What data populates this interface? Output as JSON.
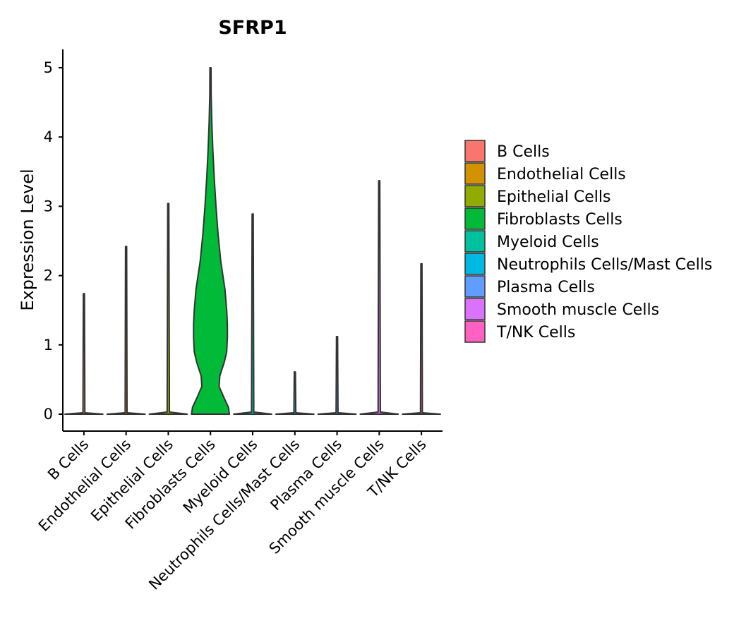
{
  "chart_data": {
    "type": "violin",
    "title": "SFRP1",
    "xlabel": "",
    "ylabel": "Expression Level",
    "ylim": [
      -0.25,
      5.25
    ],
    "yticks": [
      0,
      1,
      2,
      3,
      4,
      5
    ],
    "categories": [
      "B Cells",
      "Endothelial Cells",
      "Epithelial Cells",
      "Fibroblasts Cells",
      "Myeloid Cells",
      "Neutrophils Cells/Mast Cells",
      "Plasma Cells",
      "Smooth muscle Cells",
      "T/NK Cells"
    ],
    "colors": [
      "#F8766D",
      "#D39200",
      "#93AA00",
      "#00BA38",
      "#00C19F",
      "#00B9E3",
      "#619CFF",
      "#DB72FB",
      "#FF61C3"
    ],
    "max_values": [
      1.74,
      2.42,
      3.04,
      5.0,
      2.89,
      0.61,
      1.12,
      3.37,
      2.17
    ],
    "min_values": [
      0,
      0,
      0,
      0,
      0,
      0,
      0,
      0,
      0
    ],
    "density_profiles": [
      {
        "category": "B Cells",
        "points": [
          [
            0,
            1.0
          ],
          [
            0.02,
            0.05
          ],
          [
            1.74,
            0.02
          ]
        ]
      },
      {
        "category": "Endothelial Cells",
        "points": [
          [
            0,
            1.0
          ],
          [
            0.02,
            0.05
          ],
          [
            2.42,
            0.02
          ]
        ]
      },
      {
        "category": "Epithelial Cells",
        "points": [
          [
            0,
            1.0
          ],
          [
            0.03,
            0.06
          ],
          [
            3.04,
            0.02
          ]
        ]
      },
      {
        "category": "Fibroblasts Cells",
        "points": [
          [
            0,
            0.55
          ],
          [
            0.1,
            0.52
          ],
          [
            0.25,
            0.38
          ],
          [
            0.4,
            0.25
          ],
          [
            0.55,
            0.27
          ],
          [
            0.75,
            0.4
          ],
          [
            0.9,
            0.47
          ],
          [
            1.1,
            0.49
          ],
          [
            1.3,
            0.49
          ],
          [
            1.5,
            0.47
          ],
          [
            1.8,
            0.42
          ],
          [
            2.2,
            0.3
          ],
          [
            2.6,
            0.22
          ],
          [
            3.0,
            0.16
          ],
          [
            3.4,
            0.11
          ],
          [
            3.8,
            0.07
          ],
          [
            4.2,
            0.04
          ],
          [
            4.6,
            0.02
          ],
          [
            5.0,
            0.01
          ]
        ]
      },
      {
        "category": "Myeloid Cells",
        "points": [
          [
            0,
            1.0
          ],
          [
            0.03,
            0.06
          ],
          [
            2.89,
            0.02
          ]
        ]
      },
      {
        "category": "Neutrophils Cells/Mast Cells",
        "points": [
          [
            0,
            1.0
          ],
          [
            0.02,
            0.05
          ],
          [
            0.61,
            0.02
          ]
        ]
      },
      {
        "category": "Plasma Cells",
        "points": [
          [
            0,
            1.0
          ],
          [
            0.02,
            0.05
          ],
          [
            1.12,
            0.02
          ]
        ]
      },
      {
        "category": "Smooth muscle Cells",
        "points": [
          [
            0,
            1.0
          ],
          [
            0.03,
            0.06
          ],
          [
            3.37,
            0.02
          ]
        ]
      },
      {
        "category": "T/NK Cells",
        "points": [
          [
            0,
            1.0
          ],
          [
            0.02,
            0.05
          ],
          [
            2.17,
            0.02
          ]
        ]
      }
    ],
    "legend": {
      "position": "right",
      "entries": [
        "B Cells",
        "Endothelial Cells",
        "Epithelial Cells",
        "Fibroblasts Cells",
        "Myeloid Cells",
        "Neutrophils Cells/Mast Cells",
        "Plasma Cells",
        "Smooth muscle Cells",
        "T/NK Cells"
      ]
    },
    "grid": false
  }
}
